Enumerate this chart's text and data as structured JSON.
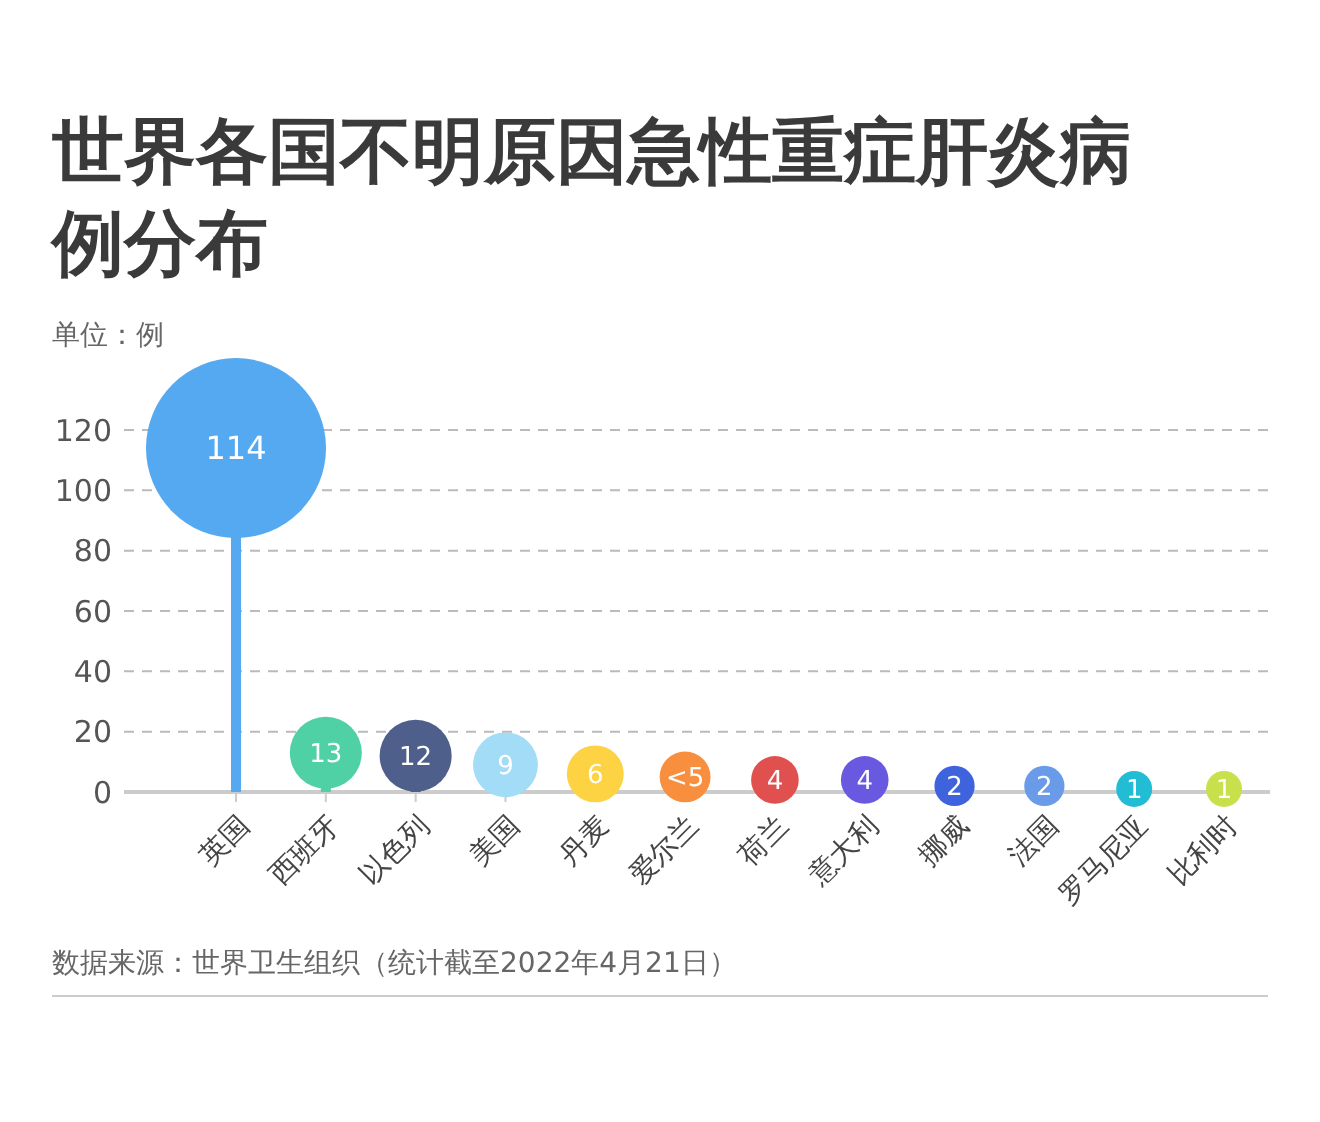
{
  "chart_data": {
    "type": "lollipop",
    "title": "世界各国不明原因急性重症肝炎病例分布",
    "ylabel": "单位：例",
    "categories": [
      "英国",
      "西班牙",
      "以色列",
      "美国",
      "丹麦",
      "爱尔兰",
      "荷兰",
      "意大利",
      "挪威",
      "法国",
      "罗马尼亚",
      "比利时"
    ],
    "values": [
      114,
      13,
      12,
      9,
      6,
      5,
      4,
      4,
      2,
      2,
      1,
      1
    ],
    "sizes": [
      1,
      0.16,
      0.16,
      0.13,
      0.1,
      0.08,
      0.07,
      0.07,
      0.05,
      0.05,
      0.04,
      0.04
    ],
    "value_labels": [
      "114",
      "13",
      "12",
      "9",
      "6",
      "<5",
      "4",
      "4",
      "2",
      "2",
      "1",
      "1"
    ],
    "colors": [
      "#55a9f0",
      "#4fd1a5",
      "#4e5f8c",
      "#a3dcf7",
      "#fdd344",
      "#f88f3e",
      "#e0504f",
      "#6859e0",
      "#3f63dc",
      "#6a9be8",
      "#22bcd4",
      "#c8e04b"
    ],
    "ylim": [
      0,
      120
    ],
    "yticks": [
      0,
      20,
      40,
      60,
      80,
      100,
      120
    ],
    "grid": "y",
    "annotations": [
      "数据来源：世界卫生组织（统计截至2022年4月21日）"
    ]
  }
}
